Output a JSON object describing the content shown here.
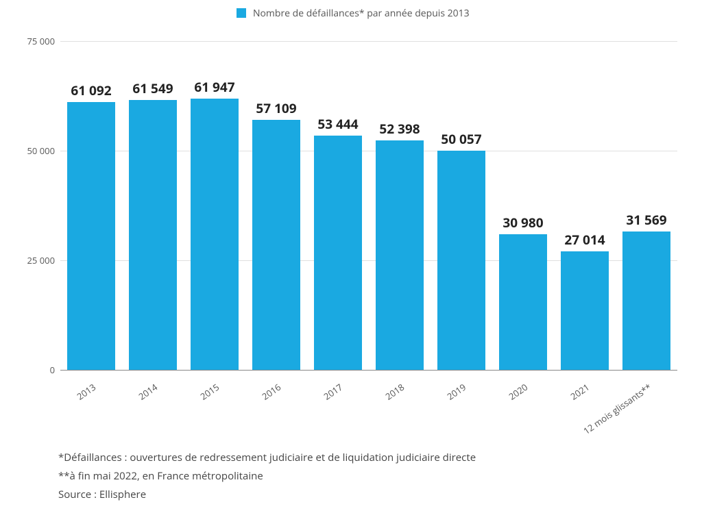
{
  "chart": {
    "type": "bar",
    "legend_label": "Nombre de défaillances* par année depuis 2013",
    "legend_swatch_color": "#1aa9e1",
    "bar_color": "#1aa9e1",
    "background_color": "#ffffff",
    "grid_color": "#e0e0e0",
    "axis_color": "#888888",
    "label_color": "#555555",
    "value_label_color": "#222222",
    "value_label_fontsize": 19,
    "value_label_fontweight": 700,
    "xlabel_fontsize": 13,
    "xlabel_rotation_deg": -35,
    "ytick_fontsize": 13,
    "bar_width_ratio": 0.78,
    "ylim": [
      0,
      75000
    ],
    "yticks": [
      {
        "value": 0,
        "label": "0"
      },
      {
        "value": 25000,
        "label": "25 000"
      },
      {
        "value": 50000,
        "label": "50 000"
      },
      {
        "value": 75000,
        "label": "75 000"
      }
    ],
    "categories": [
      "2013",
      "2014",
      "2015",
      "2016",
      "2017",
      "2018",
      "2019",
      "2020",
      "2021",
      "12 mois glissants**"
    ],
    "values": [
      61092,
      61549,
      61947,
      57109,
      53444,
      52398,
      50057,
      30980,
      27014,
      31569
    ],
    "value_labels": [
      "61 092",
      "61 549",
      "61 947",
      "57 109",
      "53 444",
      "52 398",
      "50 057",
      "30 980",
      "27 014",
      "31 569"
    ]
  },
  "footnotes": {
    "line1": "*Défaillances : ouvertures de redressement judiciaire et de liquidation judiciaire directe",
    "line2": "**à fin mai 2022, en France métropolitaine",
    "line3": "Source : Ellisphere",
    "fontsize": 15,
    "color": "#444444"
  }
}
